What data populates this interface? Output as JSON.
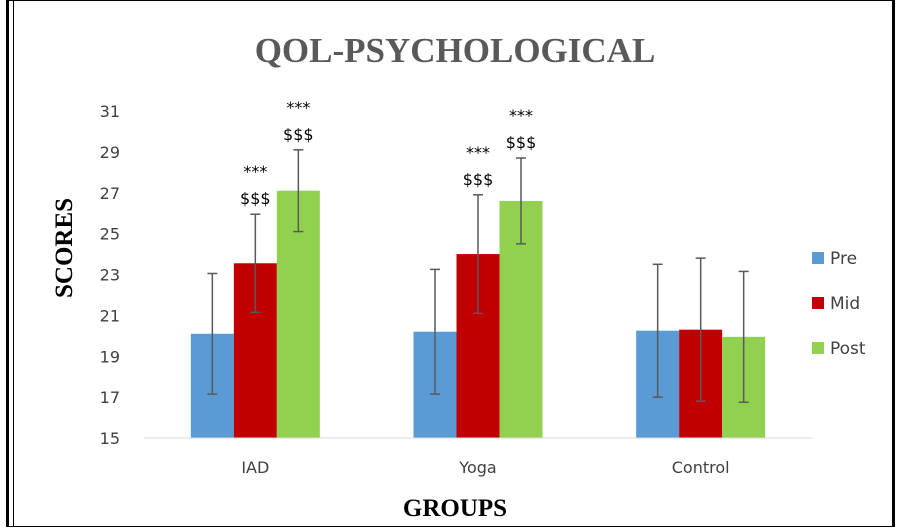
{
  "chart_data": {
    "type": "bar",
    "title": "QOL-PSYCHOLOGICAL",
    "xlabel": "GROUPS",
    "ylabel": "SCORES",
    "categories": [
      "IAD",
      "Yoga",
      "Control"
    ],
    "ylim": [
      15,
      31
    ],
    "yticks": [
      "15",
      "17",
      "19",
      "21",
      "23",
      "25",
      "27",
      "29",
      "31"
    ],
    "grid": false,
    "legend_position": "right",
    "series": [
      {
        "name": "Pre",
        "color": "#5b9bd5",
        "values": [
          20.1,
          20.2,
          20.25
        ],
        "errors": [
          2.95,
          3.05,
          3.25
        ]
      },
      {
        "name": "Mid",
        "color": "#c00000",
        "values": [
          23.55,
          24.0,
          20.3
        ],
        "errors": [
          2.4,
          2.9,
          3.5
        ]
      },
      {
        "name": "Post",
        "color": "#92d050",
        "values": [
          27.1,
          26.6,
          19.95
        ],
        "errors": [
          2.0,
          2.1,
          3.2
        ]
      }
    ],
    "annotations": [
      {
        "category": "IAD",
        "series": "Mid",
        "lines": [
          "***",
          "$$$"
        ]
      },
      {
        "category": "IAD",
        "series": "Post",
        "lines": [
          "***",
          "$$$"
        ]
      },
      {
        "category": "Yoga",
        "series": "Mid",
        "lines": [
          "***",
          "$$$"
        ]
      },
      {
        "category": "Yoga",
        "series": "Post",
        "lines": [
          "***",
          "$$$"
        ]
      }
    ]
  }
}
